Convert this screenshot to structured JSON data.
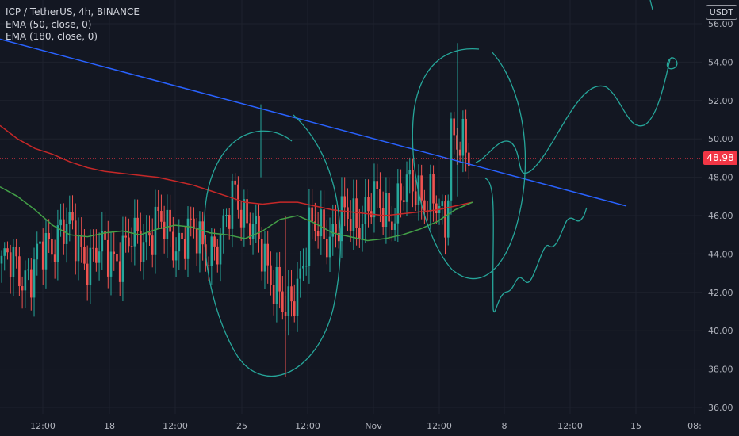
{
  "header": {
    "symbol_line": "ICP / TetherUS, 4h, BINANCE",
    "indicators": [
      "EMA (50, close, 0)",
      "EMA (180, close, 0)"
    ]
  },
  "price_axis": {
    "currency": "USDT",
    "last_price": "48.98"
  },
  "colors": {
    "background": "#131722",
    "grid": "#1e222d",
    "up": "#26a69a",
    "down": "#ef5350",
    "ema50": "#43a047",
    "ema180": "#c62828",
    "trendline": "#2962ff",
    "drawing": "#26a69a",
    "last_price": "#f23645",
    "axis_text": "#b2b5be"
  },
  "chart_data": {
    "type": "candlestick",
    "title": "ICP / TetherUS, 4h, BINANCE",
    "y_axis": {
      "ticks": [
        36,
        38,
        40,
        42,
        44,
        46,
        48,
        50,
        52,
        54,
        56
      ],
      "range": [
        35.5,
        56.6
      ],
      "unit": "USDT"
    },
    "x_axis": {
      "ticks": [
        "12:00",
        "18",
        "12:00",
        "25",
        "12:00",
        "Nov",
        "12:00",
        "8",
        "12:00",
        "15",
        "08:"
      ]
    },
    "last_price": 48.98,
    "series": [
      {
        "name": "EMA (50, close, 0)",
        "values": [
          47.5,
          47.0,
          46.3,
          45.5,
          45.0,
          44.9,
          45.1,
          45.2,
          45.0,
          45.3,
          45.5,
          45.4,
          45.1,
          45.0,
          44.8,
          45.2,
          45.8,
          46.0,
          45.6,
          45.1,
          44.9,
          44.7,
          44.8,
          45.0,
          45.3,
          45.7,
          46.3,
          46.7
        ]
      },
      {
        "name": "EMA (180, close, 0)",
        "values": [
          50.7,
          50.0,
          49.5,
          49.2,
          48.8,
          48.5,
          48.3,
          48.2,
          48.1,
          48.0,
          47.8,
          47.6,
          47.3,
          47.0,
          46.7,
          46.6,
          46.7,
          46.7,
          46.5,
          46.3,
          46.2,
          46.1,
          46.0,
          46.1,
          46.2,
          46.3,
          46.5,
          46.7
        ]
      }
    ],
    "trendline": {
      "from": 55.2,
      "to": 46.5
    },
    "annotations": [
      "hand-drawn ellipse around Oct 25-26 spike",
      "hand-drawn ellipse around Nov 3-4 spike",
      "hand-drawn projection path toward 54"
    ]
  }
}
